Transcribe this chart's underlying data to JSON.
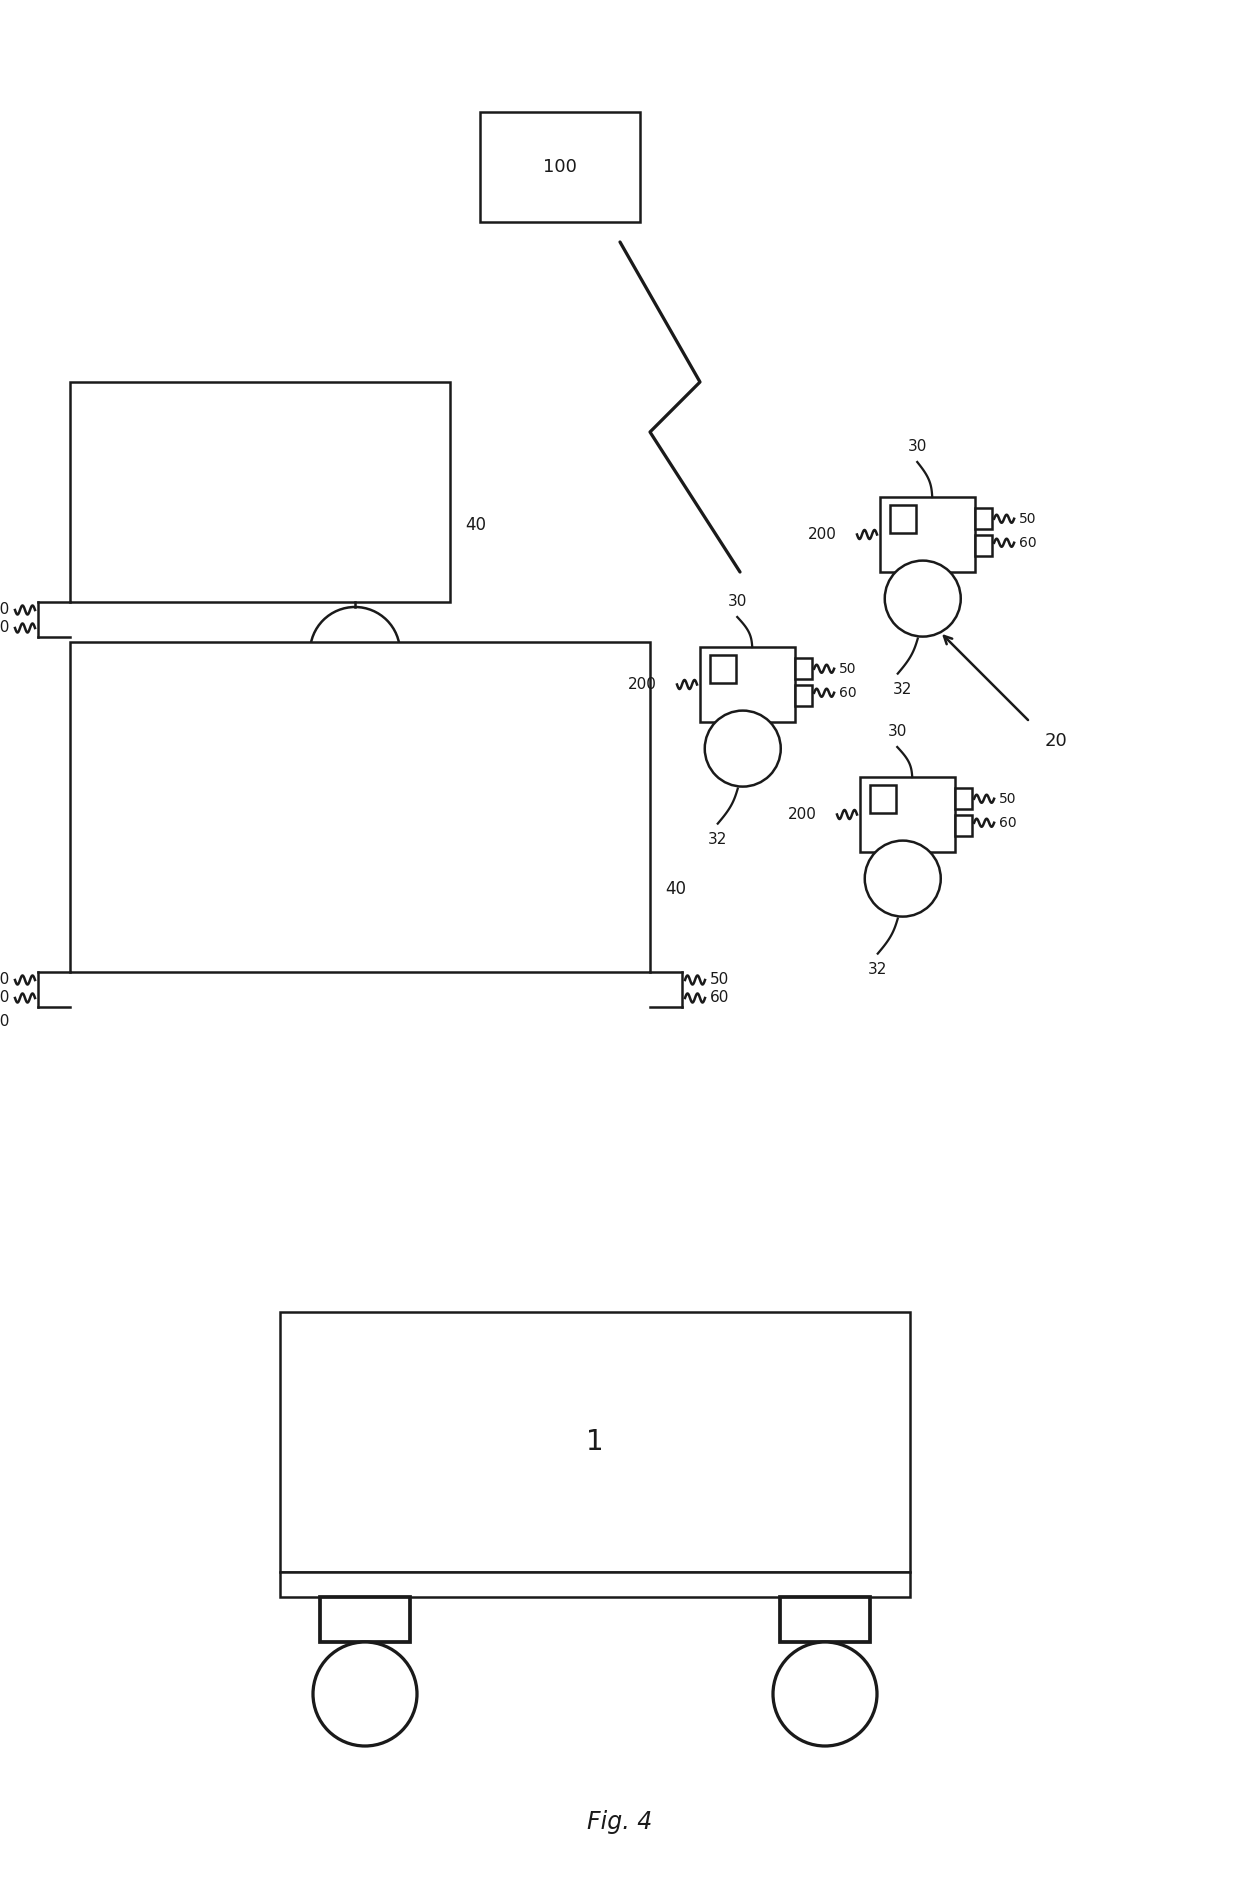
{
  "fig_label": "Fig. 4",
  "bg_color": "#ffffff",
  "line_color": "#1a1a1a",
  "line_width": 1.8,
  "fig_width": 12.4,
  "fig_height": 19.02,
  "dpi": 100
}
